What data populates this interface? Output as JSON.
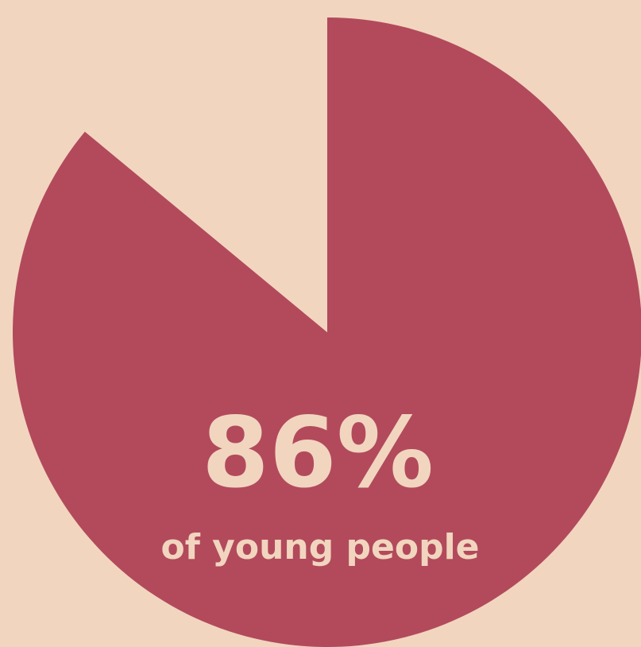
{
  "colors": {
    "background": "#f2d5bf",
    "slice": "#b24a5c",
    "text": "#f2d5bf"
  },
  "chart_data": {
    "type": "pie",
    "categories": [
      "of young people",
      ""
    ],
    "values": [
      86,
      14
    ],
    "value_label": "86%",
    "caption": "of young people",
    "start_angle": "12 o'clock, clockwise",
    "legend": "none"
  }
}
